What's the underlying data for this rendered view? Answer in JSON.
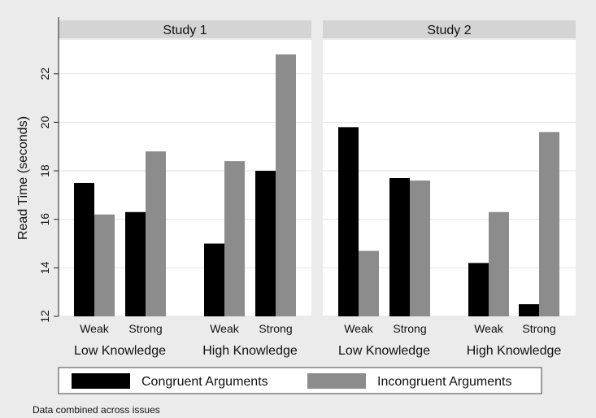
{
  "chart_data": {
    "type": "bar",
    "ylabel": "Read Time (seconds)",
    "ylim": [
      12,
      23.4
    ],
    "yticks": [
      "12",
      "14",
      "16",
      "18",
      "20",
      "22"
    ],
    "grid": true,
    "legend": {
      "position": "bottom",
      "entries": [
        "Congruent Arguments",
        "Incongruent Arguments"
      ],
      "colors": [
        "#000000",
        "#8c8c8c"
      ]
    },
    "note": "Data combined across issues",
    "panels": [
      {
        "title": "Study 1",
        "groups": [
          {
            "label": "Low Knowledge",
            "categories": [
              "Weak",
              "Strong"
            ],
            "series": [
              {
                "name": "Congruent Arguments",
                "values": [
                  17.5,
                  16.3
                ]
              },
              {
                "name": "Incongruent Arguments",
                "values": [
                  16.2,
                  18.8
                ]
              }
            ]
          },
          {
            "label": "High Knowledge",
            "categories": [
              "Weak",
              "Strong"
            ],
            "series": [
              {
                "name": "Congruent Arguments",
                "values": [
                  15.0,
                  18.0
                ]
              },
              {
                "name": "Incongruent Arguments",
                "values": [
                  18.4,
                  22.8
                ]
              }
            ]
          }
        ]
      },
      {
        "title": "Study 2",
        "groups": [
          {
            "label": "Low Knowledge",
            "categories": [
              "Weak",
              "Strong"
            ],
            "series": [
              {
                "name": "Congruent Arguments",
                "values": [
                  19.8,
                  17.7
                ]
              },
              {
                "name": "Incongruent Arguments",
                "values": [
                  14.7,
                  17.6
                ]
              }
            ]
          },
          {
            "label": "High Knowledge",
            "categories": [
              "Weak",
              "Strong"
            ],
            "series": [
              {
                "name": "Congruent Arguments",
                "values": [
                  14.2,
                  12.5
                ]
              },
              {
                "name": "Incongruent Arguments",
                "values": [
                  16.3,
                  19.6
                ]
              }
            ]
          }
        ]
      }
    ]
  }
}
